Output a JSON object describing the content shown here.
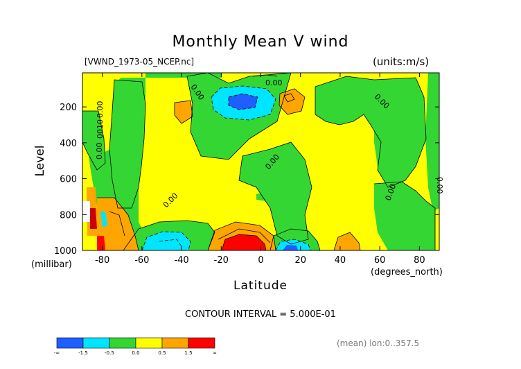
{
  "chart_data": {
    "type": "contour",
    "title": "Monthly Mean V wind",
    "subtitle_left": "[VWND_1973-05_NCEP.nc]",
    "subtitle_right": "(units:m/s)",
    "xlabel": "Latitude",
    "ylabel": "Level",
    "xunit": "(degrees_north)",
    "yunit": "(millibar)",
    "xlim": [
      -90,
      90
    ],
    "ylim": [
      1000,
      10
    ],
    "xticks": [
      -80,
      -60,
      -40,
      -20,
      0,
      20,
      40,
      60,
      80
    ],
    "yticks": [
      200,
      400,
      600,
      800,
      1000
    ],
    "contour_interval_text": "CONTOUR INTERVAL = 5.000E-01",
    "contour_labels": [
      "0.00",
      "0.00",
      "0.00",
      "0.00",
      "0.00",
      "0.00",
      "0.00",
      "0.00",
      "0.00",
      "0010"
    ],
    "colorbar": {
      "colors": [
        "#1f5eff",
        "#00e5ff",
        "#33d633",
        "#ffff00",
        "#ffa500",
        "#ff0000"
      ],
      "labels": [
        "-∞",
        "-1.5",
        "-0.5",
        "0.0",
        "0.5",
        "1.5",
        "∞"
      ]
    },
    "note": "(mean) lon:0..357.5",
    "grid": false
  }
}
